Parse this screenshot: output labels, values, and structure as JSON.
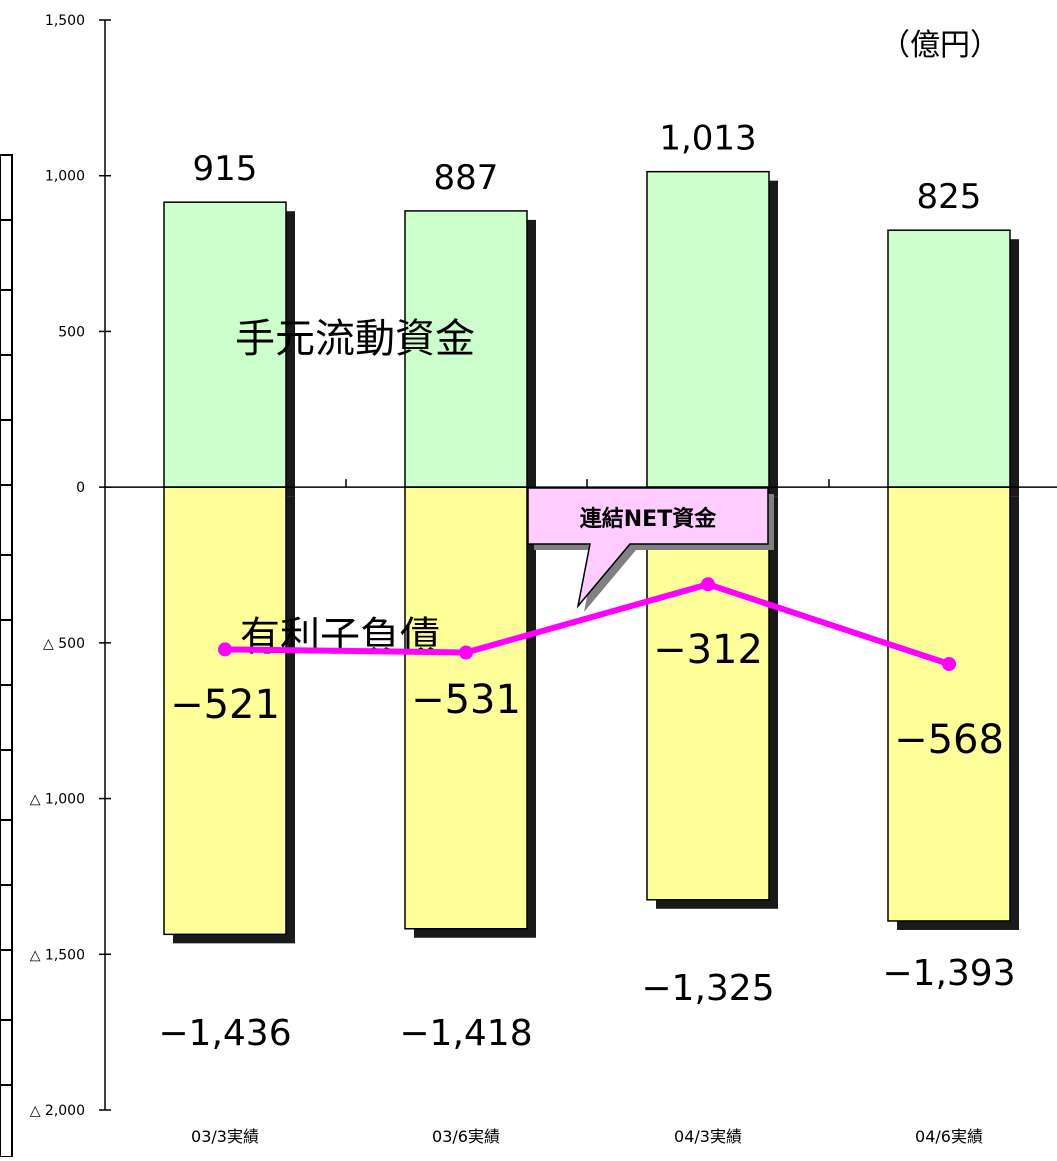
{
  "chart_data": {
    "type": "bar",
    "unit_label": "（億円）",
    "categories": [
      "03/3実績",
      "03/6実績",
      "04/3実績",
      "04/6実績"
    ],
    "ylim": [
      -2000,
      1500
    ],
    "yticks": [
      1500,
      1000,
      500,
      0,
      -500,
      -1000,
      -1500,
      -2000
    ],
    "ytick_labels": [
      "1,500",
      "1,000",
      "500",
      "0",
      "△ 500",
      "△ 1,000",
      "△ 1,500",
      "△ 2,000"
    ],
    "series": [
      {
        "name": "手元流動資金",
        "kind": "bar",
        "values": [
          915,
          887,
          1013,
          825
        ],
        "value_labels": [
          "915",
          "887",
          "1,013",
          "825"
        ],
        "color": "#ccffcc"
      },
      {
        "name": "有利子負債",
        "kind": "bar",
        "values": [
          -1436,
          -1418,
          -1325,
          -1393
        ],
        "value_labels": [
          "−1,436",
          "−1,418",
          "−1,325",
          "−1,393"
        ],
        "color": "#ffff99"
      },
      {
        "name": "連結NET資金",
        "kind": "line",
        "values": [
          -521,
          -531,
          -312,
          -568
        ],
        "value_labels": [
          "−521",
          "−531",
          "−312",
          "−568"
        ],
        "color": "#ff00ff"
      }
    ],
    "callout_color": "#ffccff",
    "grid": false,
    "legend": "none"
  }
}
